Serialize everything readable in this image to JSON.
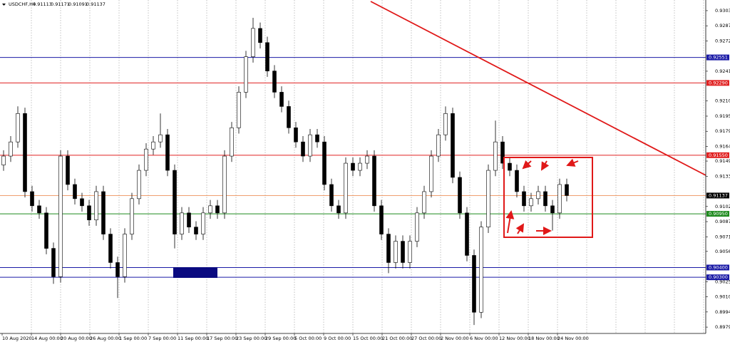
{
  "chart_data": {
    "type": "candlestick",
    "title": "USDCHF,H4",
    "header_values": [
      0.91113,
      0.91171,
      0.91091,
      0.91137
    ],
    "ylim": [
      0.89725,
      0.93139
    ],
    "yticks": [
      {
        "value": 0.9303,
        "label": "0.93030"
      },
      {
        "value": 0.92875,
        "label": "0.92875"
      },
      {
        "value": 0.9272,
        "label": "0.92720"
      },
      {
        "value": 0.9241,
        "label": "0.92410"
      },
      {
        "value": 0.92105,
        "label": "0.92105"
      },
      {
        "value": 0.9195,
        "label": "0.91950"
      },
      {
        "value": 0.91795,
        "label": "0.91795"
      },
      {
        "value": 0.9164,
        "label": "0.91640"
      },
      {
        "value": 0.9149,
        "label": "0.91490"
      },
      {
        "value": 0.91335,
        "label": "0.91335"
      },
      {
        "value": 0.91025,
        "label": "0.91025"
      },
      {
        "value": 0.9087,
        "label": "0.90870"
      },
      {
        "value": 0.90715,
        "label": "0.90715"
      },
      {
        "value": 0.90565,
        "label": "0.90565"
      },
      {
        "value": 0.90255,
        "label": "0.90255"
      },
      {
        "value": 0.901,
        "label": "0.90100"
      },
      {
        "value": 0.89945,
        "label": "0.89945"
      },
      {
        "value": 0.8979,
        "label": "0.89790"
      }
    ],
    "x_labels": [
      "10 Aug 2020",
      "14 Aug 00:00",
      "20 Aug 00:00",
      "26 Aug 00:00",
      "1 Sep 00:00",
      "7 Sep 00:00",
      "11 Sep 00:00",
      "17 Sep 00:00",
      "23 Sep 00:00",
      "29 Sep 00:00",
      "5 Oct 00:00",
      "9 Oct 00:00",
      "15 Oct 00:00",
      "21 Oct 00:00",
      "27 Oct 00:00",
      "2 Nov 00:00",
      "6 Nov 00:00",
      "12 Nov 00:00",
      "18 Nov 00:00",
      "24 Nov 00:00"
    ],
    "levels": [
      {
        "value": 0.92551,
        "label": "0.92551",
        "color": "#1a1aa6"
      },
      {
        "value": 0.9229,
        "label": "0.92290",
        "color": "#e02020"
      },
      {
        "value": 0.9155,
        "label": "0.91550",
        "color": "#e02020"
      },
      {
        "value": 0.91137,
        "label": "0.91137",
        "color": "#f0a070"
      },
      {
        "value": 0.9095,
        "label": "0.90950",
        "color": "#1e8a1e"
      },
      {
        "value": 0.904,
        "label": "0.90400",
        "color": "#1a1aa6"
      },
      {
        "value": 0.903,
        "label": "0.90300",
        "color": "#1a1aa6"
      }
    ],
    "open": [
      0.9145,
      0.91541,
      0.91686,
      0.91977,
      0.91177,
      0.91032,
      0.90959,
      0.90596,
      0.90306,
      0.91541,
      0.9125,
      0.91105,
      0.91032,
      0.90887,
      0.91177,
      0.90742,
      0.90451,
      0.90306,
      0.90742,
      0.91105,
      0.91395,
      0.91613,
      0.91686,
      0.91759,
      0.91395,
      0.90742,
      0.90959,
      0.90814,
      0.90742,
      0.90959,
      0.91032,
      0.90959,
      0.91541,
      0.91831,
      0.92195,
      0.92558,
      0.92848,
      0.92703,
      0.92412,
      0.92195,
      0.92049,
      0.91831,
      0.91686,
      0.91541,
      0.91759,
      0.91686,
      0.9125,
      0.91032,
      0.90959,
      0.91468,
      0.91395,
      0.91468,
      0.91541,
      0.91032,
      0.90742,
      0.90451,
      0.90669,
      0.90451,
      0.90669,
      0.90959,
      0.91177,
      0.91541,
      0.91759,
      0.91977,
      0.91323,
      0.90959,
      0.90524,
      0.89942,
      0.90814,
      0.91395,
      0.91686,
      0.91468,
      0.91395,
      0.91177,
      0.91032,
      0.91105,
      0.91177,
      0.91032,
      0.90959,
      0.9125
    ],
    "high": [
      0.91601,
      0.91746,
      0.9205,
      0.92037,
      0.91237,
      0.91092,
      0.91019,
      0.90656,
      0.91601,
      0.91601,
      0.9131,
      0.91165,
      0.91092,
      0.91237,
      0.91237,
      0.90802,
      0.90511,
      0.90802,
      0.91165,
      0.91455,
      0.91673,
      0.91746,
      0.91977,
      0.91819,
      0.91455,
      0.91019,
      0.91019,
      0.90874,
      0.91019,
      0.91092,
      0.91092,
      0.91601,
      0.91891,
      0.92255,
      0.92618,
      0.92957,
      0.92908,
      0.92763,
      0.92472,
      0.92255,
      0.92109,
      0.91891,
      0.91746,
      0.91819,
      0.91819,
      0.91746,
      0.9131,
      0.91092,
      0.91528,
      0.91528,
      0.91528,
      0.91601,
      0.91601,
      0.91092,
      0.90802,
      0.90729,
      0.90729,
      0.90729,
      0.91019,
      0.91237,
      0.91601,
      0.91819,
      0.92049,
      0.92037,
      0.91383,
      0.91019,
      0.90584,
      0.90874,
      0.91455,
      0.91904,
      0.91746,
      0.91528,
      0.91455,
      0.91237,
      0.91165,
      0.91237,
      0.91237,
      0.91092,
      0.9131,
      0.9131
    ],
    "low": [
      0.9139,
      0.91481,
      0.91626,
      0.91117,
      0.90972,
      0.90899,
      0.90536,
      0.90233,
      0.90246,
      0.9119,
      0.91045,
      0.90972,
      0.90827,
      0.90827,
      0.90682,
      0.90391,
      0.90088,
      0.90246,
      0.90682,
      0.91045,
      0.91335,
      0.91553,
      0.91626,
      0.91335,
      0.90596,
      0.90682,
      0.90754,
      0.90682,
      0.90682,
      0.90899,
      0.90899,
      0.90899,
      0.91481,
      0.91771,
      0.92135,
      0.92498,
      0.92643,
      0.92352,
      0.92135,
      0.91989,
      0.91771,
      0.91626,
      0.91481,
      0.91481,
      0.91626,
      0.9119,
      0.90972,
      0.90899,
      0.90899,
      0.91335,
      0.91335,
      0.91408,
      0.90972,
      0.90682,
      0.90342,
      0.90391,
      0.90391,
      0.90391,
      0.90609,
      0.90899,
      0.91117,
      0.91481,
      0.91699,
      0.91263,
      0.90899,
      0.90464,
      0.89812,
      0.89882,
      0.90754,
      0.91335,
      0.91408,
      0.91335,
      0.91117,
      0.90972,
      0.90972,
      0.91045,
      0.90972,
      0.90778,
      0.90899,
      0.91077
    ],
    "close": [
      0.91541,
      0.91686,
      0.91977,
      0.91177,
      0.91032,
      0.90959,
      0.90596,
      0.90306,
      0.91541,
      0.9125,
      0.91105,
      0.91032,
      0.90887,
      0.91177,
      0.90742,
      0.90451,
      0.90306,
      0.90742,
      0.91105,
      0.91395,
      0.91613,
      0.91686,
      0.91759,
      0.91395,
      0.90742,
      0.90959,
      0.90814,
      0.90742,
      0.90959,
      0.91032,
      0.90959,
      0.91541,
      0.91831,
      0.92195,
      0.92558,
      0.92848,
      0.92703,
      0.92412,
      0.92195,
      0.92049,
      0.91831,
      0.91686,
      0.91541,
      0.91759,
      0.91686,
      0.9125,
      0.91032,
      0.90959,
      0.91468,
      0.91395,
      0.91468,
      0.91541,
      0.91032,
      0.90742,
      0.90451,
      0.90669,
      0.90451,
      0.90669,
      0.90959,
      0.91177,
      0.91541,
      0.91759,
      0.91977,
      0.91323,
      0.90959,
      0.90524,
      0.89942,
      0.90814,
      0.91395,
      0.91686,
      0.91468,
      0.91395,
      0.91177,
      0.91032,
      0.91105,
      0.91177,
      0.91032,
      0.90959,
      0.9125,
      0.91137
    ],
    "grid": true
  }
}
